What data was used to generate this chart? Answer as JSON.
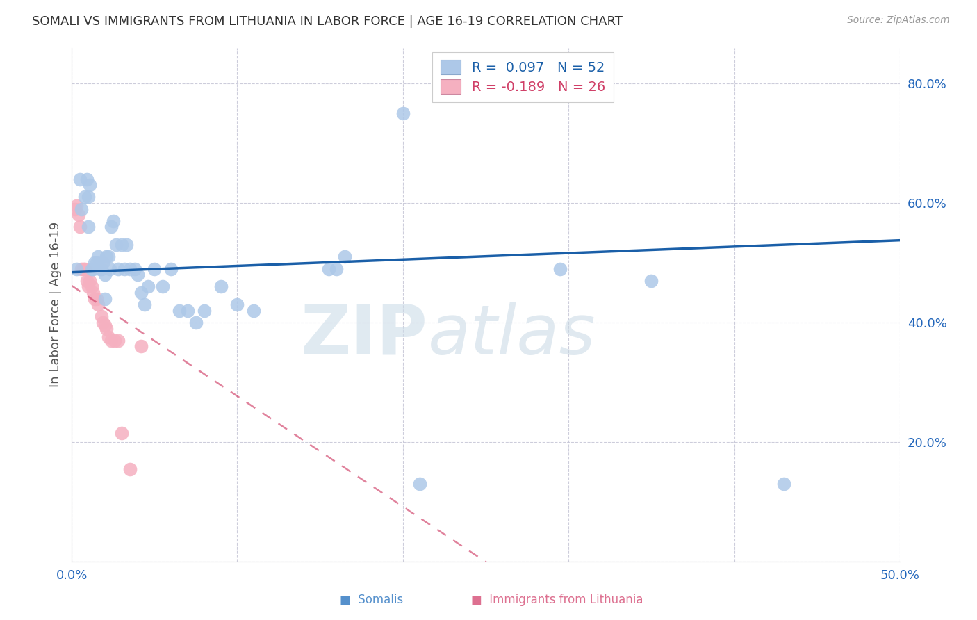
{
  "title": "SOMALI VS IMMIGRANTS FROM LITHUANIA IN LABOR FORCE | AGE 16-19 CORRELATION CHART",
  "source": "Source: ZipAtlas.com",
  "ylabel": "In Labor Force | Age 16-19",
  "xlim": [
    0.0,
    0.5
  ],
  "ylim": [
    0.0,
    0.86
  ],
  "xticks": [
    0.0,
    0.1,
    0.2,
    0.3,
    0.4,
    0.5
  ],
  "yticks": [
    0.0,
    0.2,
    0.4,
    0.6,
    0.8
  ],
  "ytick_labels": [
    "",
    "20.0%",
    "40.0%",
    "60.0%",
    "80.0%"
  ],
  "xtick_left_label": "0.0%",
  "xtick_right_label": "50.0%",
  "somali_R": 0.097,
  "somali_N": 52,
  "lithuania_R": -0.189,
  "lithuania_N": 26,
  "somali_color": "#adc8e8",
  "somali_line_color": "#1a5fa8",
  "lithuania_color": "#f5b0c0",
  "lithuania_line_color": "#d04068",
  "background_color": "#ffffff",
  "grid_color": "#c8c8d8",
  "watermark_zip": "ZIP",
  "watermark_atlas": "atlas",
  "somali_x": [
    0.003,
    0.005,
    0.006,
    0.008,
    0.009,
    0.01,
    0.01,
    0.011,
    0.012,
    0.013,
    0.014,
    0.015,
    0.016,
    0.017,
    0.018,
    0.019,
    0.02,
    0.02,
    0.021,
    0.022,
    0.023,
    0.024,
    0.025,
    0.027,
    0.028,
    0.03,
    0.032,
    0.033,
    0.035,
    0.038,
    0.04,
    0.042,
    0.044,
    0.046,
    0.05,
    0.055,
    0.06,
    0.065,
    0.07,
    0.075,
    0.08,
    0.09,
    0.1,
    0.11,
    0.155,
    0.16,
    0.165,
    0.2,
    0.21,
    0.295,
    0.35,
    0.43
  ],
  "somali_y": [
    0.49,
    0.64,
    0.59,
    0.61,
    0.64,
    0.61,
    0.56,
    0.63,
    0.49,
    0.49,
    0.5,
    0.5,
    0.51,
    0.49,
    0.49,
    0.5,
    0.48,
    0.44,
    0.51,
    0.51,
    0.49,
    0.56,
    0.57,
    0.53,
    0.49,
    0.53,
    0.49,
    0.53,
    0.49,
    0.49,
    0.48,
    0.45,
    0.43,
    0.46,
    0.49,
    0.46,
    0.49,
    0.42,
    0.42,
    0.4,
    0.42,
    0.46,
    0.43,
    0.42,
    0.49,
    0.49,
    0.51,
    0.75,
    0.13,
    0.49,
    0.47,
    0.13
  ],
  "lithuania_x": [
    0.002,
    0.003,
    0.004,
    0.005,
    0.006,
    0.007,
    0.008,
    0.009,
    0.01,
    0.011,
    0.012,
    0.013,
    0.014,
    0.015,
    0.016,
    0.018,
    0.019,
    0.02,
    0.021,
    0.022,
    0.024,
    0.026,
    0.028,
    0.03,
    0.035,
    0.042
  ],
  "lithuania_y": [
    0.59,
    0.595,
    0.58,
    0.56,
    0.49,
    0.49,
    0.49,
    0.47,
    0.46,
    0.47,
    0.46,
    0.45,
    0.44,
    0.44,
    0.43,
    0.41,
    0.4,
    0.395,
    0.39,
    0.375,
    0.37,
    0.37,
    0.37,
    0.215,
    0.155,
    0.36
  ]
}
